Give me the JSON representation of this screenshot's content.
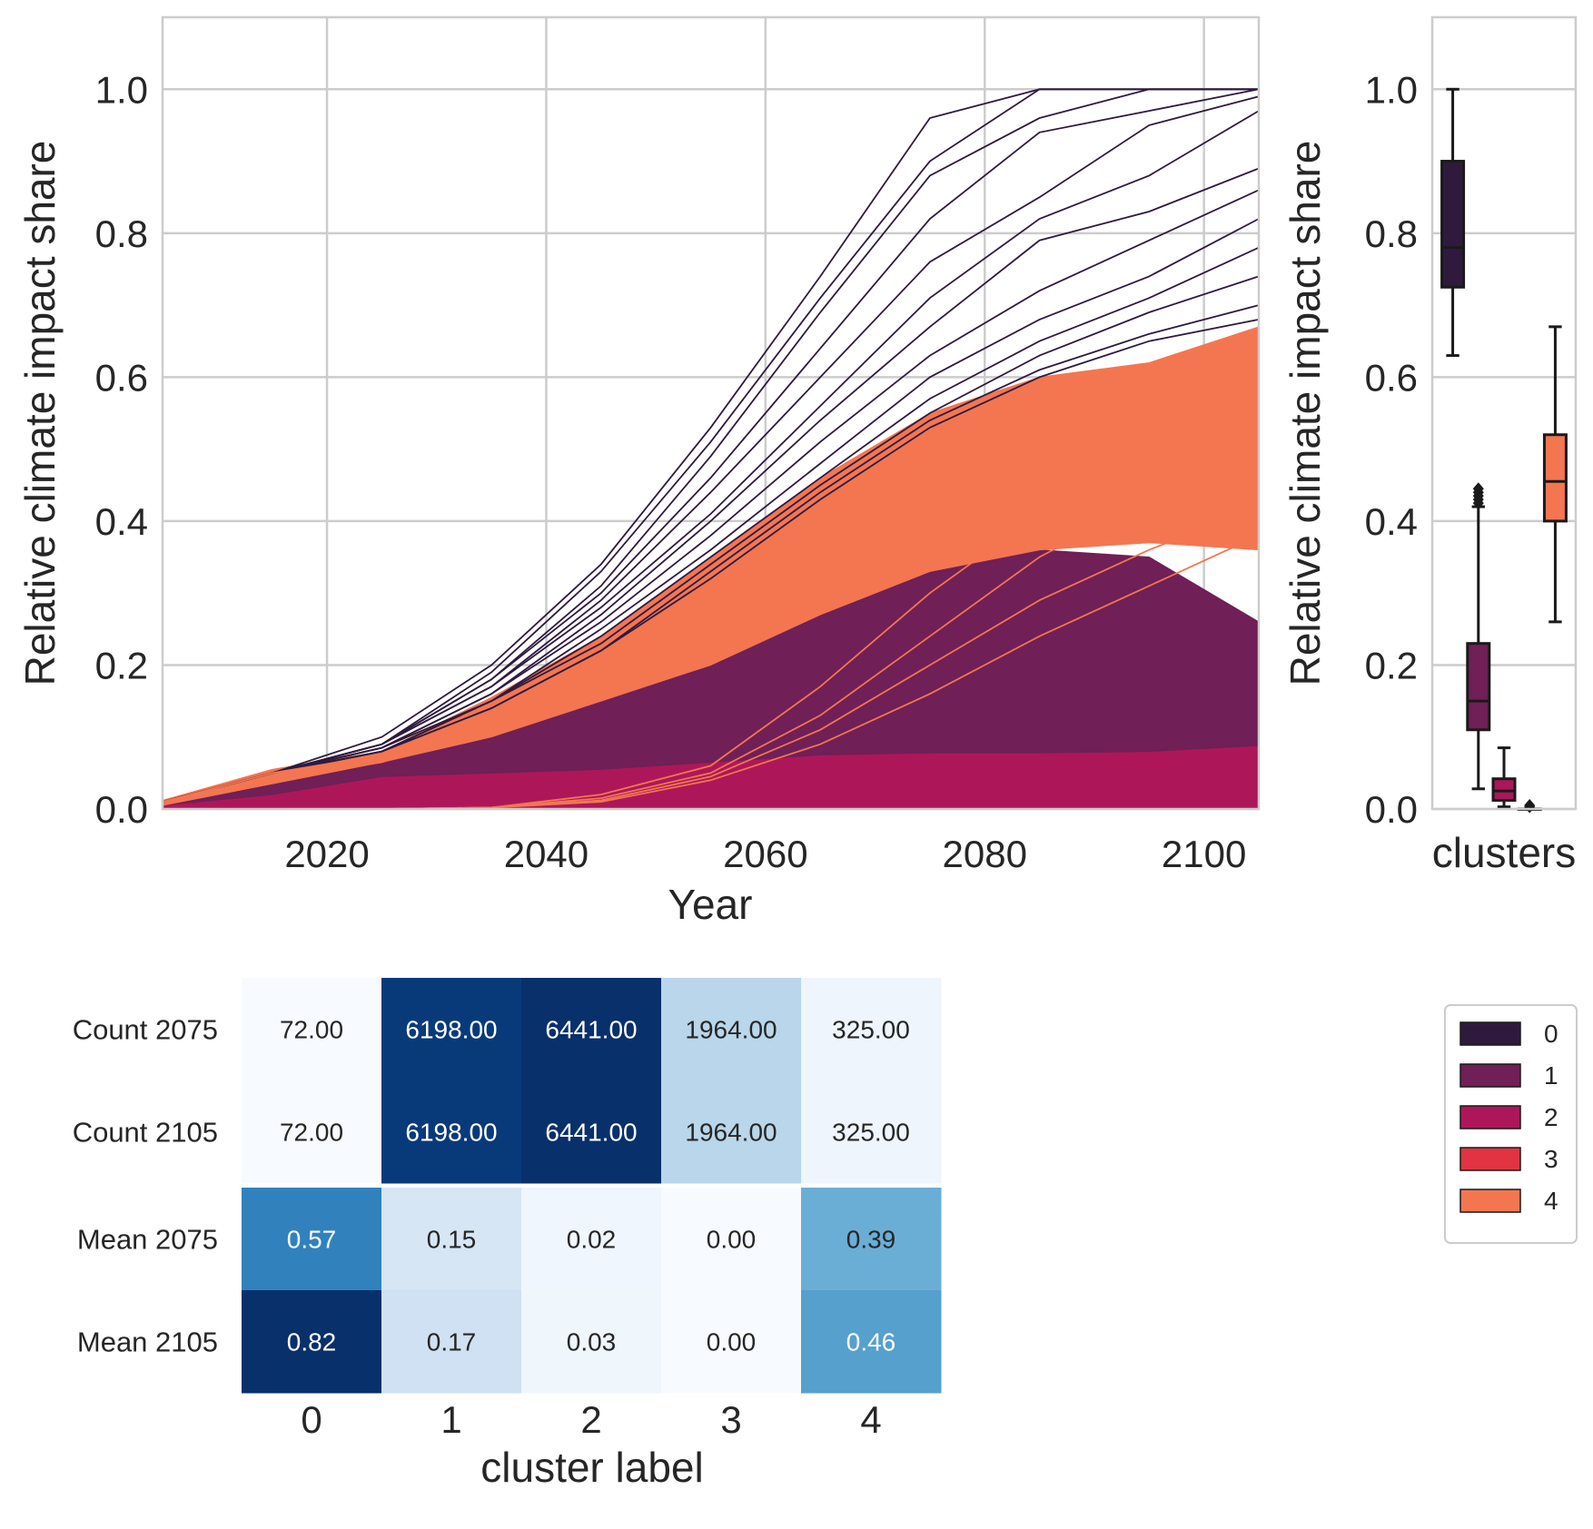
{
  "chart_data": [
    {
      "type": "line",
      "xlabel": "Year",
      "ylabel": "Relative climate impact share",
      "xlim": [
        2005,
        2105
      ],
      "ylim": [
        0,
        1.1
      ],
      "xticks": [
        2020,
        2040,
        2060,
        2080,
        2100
      ],
      "yticks": [
        0.0,
        0.2,
        0.4,
        0.6,
        0.8,
        1.0
      ],
      "x": [
        2005,
        2015,
        2025,
        2035,
        2045,
        2055,
        2065,
        2075,
        2085,
        2095,
        2105
      ],
      "grid": true,
      "bands": [
        {
          "name": "2",
          "color": "#ad1759",
          "lower": [
            0,
            0,
            0,
            0,
            0,
            0,
            0,
            0,
            0,
            0,
            0
          ],
          "upper": [
            0.005,
            0.02,
            0.045,
            0.05,
            0.055,
            0.065,
            0.075,
            0.078,
            0.078,
            0.08,
            0.088
          ]
        },
        {
          "name": "1",
          "color": "#701f57",
          "lower": [
            0.005,
            0.02,
            0.045,
            0.05,
            0.055,
            0.065,
            0.075,
            0.078,
            0.078,
            0.08,
            0.088
          ],
          "upper": [
            0.005,
            0.035,
            0.065,
            0.1,
            0.15,
            0.2,
            0.27,
            0.33,
            0.36,
            0.35,
            0.26
          ]
        },
        {
          "name": "4",
          "color": "#f37651",
          "lower": [
            0.005,
            0.035,
            0.065,
            0.1,
            0.15,
            0.2,
            0.27,
            0.33,
            0.36,
            0.37,
            0.36
          ],
          "upper": [
            0.012,
            0.055,
            0.08,
            0.155,
            0.24,
            0.35,
            0.46,
            0.55,
            0.6,
            0.62,
            0.67
          ]
        }
      ],
      "series": [
        {
          "color": "#2f1a3e",
          "values": [
            0.01,
            0.05,
            0.1,
            0.2,
            0.34,
            0.53,
            0.74,
            0.96,
            1.0,
            1.0,
            1.0
          ]
        },
        {
          "color": "#2f1a3e",
          "values": [
            0.01,
            0.05,
            0.09,
            0.19,
            0.33,
            0.51,
            0.71,
            0.9,
            1.0,
            1.0,
            1.0
          ]
        },
        {
          "color": "#2f1a3e",
          "values": [
            0.01,
            0.05,
            0.09,
            0.18,
            0.31,
            0.49,
            0.69,
            0.88,
            0.96,
            1.0,
            1.0
          ]
        },
        {
          "color": "#2f1a3e",
          "values": [
            0.01,
            0.05,
            0.09,
            0.18,
            0.3,
            0.46,
            0.64,
            0.82,
            0.94,
            0.97,
            1.0
          ]
        },
        {
          "color": "#2f1a3e",
          "values": [
            0.01,
            0.05,
            0.09,
            0.17,
            0.29,
            0.44,
            0.6,
            0.76,
            0.85,
            0.95,
            0.99
          ]
        },
        {
          "color": "#2f1a3e",
          "values": [
            0.01,
            0.05,
            0.09,
            0.17,
            0.28,
            0.41,
            0.56,
            0.71,
            0.82,
            0.88,
            0.97
          ]
        },
        {
          "color": "#2f1a3e",
          "values": [
            0.01,
            0.05,
            0.085,
            0.16,
            0.27,
            0.4,
            0.54,
            0.67,
            0.79,
            0.83,
            0.89
          ]
        },
        {
          "color": "#2f1a3e",
          "values": [
            0.01,
            0.05,
            0.085,
            0.16,
            0.26,
            0.38,
            0.51,
            0.63,
            0.72,
            0.79,
            0.86
          ]
        },
        {
          "color": "#2f1a3e",
          "values": [
            0.01,
            0.05,
            0.085,
            0.15,
            0.25,
            0.36,
            0.48,
            0.6,
            0.68,
            0.74,
            0.82
          ]
        },
        {
          "color": "#2f1a3e",
          "values": [
            0.01,
            0.05,
            0.08,
            0.15,
            0.24,
            0.35,
            0.46,
            0.57,
            0.65,
            0.71,
            0.78
          ]
        },
        {
          "color": "#2f1a3e",
          "values": [
            0.01,
            0.05,
            0.08,
            0.15,
            0.23,
            0.34,
            0.45,
            0.55,
            0.63,
            0.69,
            0.74
          ]
        },
        {
          "color": "#2f1a3e",
          "values": [
            0.01,
            0.05,
            0.08,
            0.14,
            0.22,
            0.33,
            0.44,
            0.54,
            0.61,
            0.66,
            0.7
          ]
        },
        {
          "color": "#2f1a3e",
          "values": [
            0.01,
            0.05,
            0.08,
            0.14,
            0.22,
            0.32,
            0.43,
            0.53,
            0.6,
            0.65,
            0.68
          ]
        },
        {
          "color": "#f37651",
          "values": [
            0.01,
            0.05,
            0.075,
            0.13,
            0.2,
            0.29,
            0.39,
            0.48,
            0.54,
            0.58,
            0.6
          ]
        },
        {
          "color": "#f37651",
          "values": [
            0.01,
            0.045,
            0.07,
            0.12,
            0.18,
            0.26,
            0.35,
            0.43,
            0.48,
            0.51,
            0.52
          ]
        },
        {
          "color": "#f37651",
          "values": [
            0.01,
            0.04,
            0.065,
            0.11,
            0.16,
            0.23,
            0.3,
            0.37,
            0.41,
            0.43,
            0.44
          ]
        },
        {
          "color": "#f37651",
          "values": [
            0.0,
            0.0,
            0.0,
            0.002,
            0.02,
            0.06,
            0.17,
            0.3,
            0.41,
            0.49,
            0.6
          ]
        },
        {
          "color": "#f37651",
          "values": [
            0.0,
            0.0,
            0.0,
            0.002,
            0.015,
            0.05,
            0.13,
            0.24,
            0.35,
            0.43,
            0.5
          ]
        },
        {
          "color": "#f37651",
          "values": [
            0.0,
            0.0,
            0.0,
            0.002,
            0.012,
            0.045,
            0.11,
            0.2,
            0.29,
            0.36,
            0.42
          ]
        },
        {
          "color": "#f37651",
          "values": [
            0.0,
            0.0,
            0.0,
            0.002,
            0.01,
            0.04,
            0.09,
            0.16,
            0.24,
            0.31,
            0.38
          ]
        }
      ]
    },
    {
      "type": "box",
      "xlabel": "clusters",
      "ylabel": "Relative climate impact share",
      "ylim": [
        0,
        1.1
      ],
      "yticks": [
        0.0,
        0.2,
        0.4,
        0.6,
        0.8,
        1.0
      ],
      "boxes": [
        {
          "name": "0",
          "color": "#2f1a3e",
          "whislo": 0.63,
          "q1": 0.725,
          "med": 0.78,
          "q3": 0.9,
          "whishi": 1.0,
          "fliers": []
        },
        {
          "name": "1",
          "color": "#701f57",
          "whislo": 0.028,
          "q1": 0.11,
          "med": 0.15,
          "q3": 0.23,
          "whishi": 0.42,
          "fliers": [
            0.425,
            0.43,
            0.435,
            0.44,
            0.445
          ]
        },
        {
          "name": "2",
          "color": "#ad1759",
          "whislo": 0.003,
          "q1": 0.012,
          "med": 0.025,
          "q3": 0.042,
          "whishi": 0.085,
          "fliers": []
        },
        {
          "name": "3",
          "color": "#e13342",
          "whislo": 0.0,
          "q1": 0.0,
          "med": 0.0,
          "q3": 0.0,
          "whishi": 0.0,
          "fliers": [
            0.003,
            0.005
          ]
        },
        {
          "name": "4",
          "color": "#f37651",
          "whislo": 0.26,
          "q1": 0.4,
          "med": 0.455,
          "q3": 0.52,
          "whishi": 0.67,
          "fliers": []
        }
      ]
    },
    {
      "type": "heatmap",
      "xlabel": "cluster label",
      "columns": [
        "0",
        "1",
        "2",
        "3",
        "4"
      ],
      "rows": [
        {
          "label": "Count 2075",
          "values": [
            "72.00",
            "6198.00",
            "6441.00",
            "1964.00",
            "325.00"
          ],
          "colors": [
            "#f7fbff",
            "#083a7a",
            "#08306b",
            "#b9d6eb",
            "#eef5fc"
          ],
          "text_colors": [
            "#262626",
            "#ffffff",
            "#ffffff",
            "#262626",
            "#262626"
          ]
        },
        {
          "label": "Count 2105",
          "values": [
            "72.00",
            "6198.00",
            "6441.00",
            "1964.00",
            "325.00"
          ],
          "colors": [
            "#f7fbff",
            "#083a7a",
            "#08306b",
            "#b9d6eb",
            "#eef5fc"
          ],
          "text_colors": [
            "#262626",
            "#ffffff",
            "#ffffff",
            "#262626",
            "#262626"
          ]
        },
        {
          "label": "Mean 2075",
          "values": [
            "0.57",
            "0.15",
            "0.02",
            "0.00",
            "0.39"
          ],
          "colors": [
            "#3181bd",
            "#d6e6f4",
            "#f0f6fd",
            "#f7fbff",
            "#6aaed6"
          ],
          "text_colors": [
            "#ffffff",
            "#262626",
            "#262626",
            "#262626",
            "#262626"
          ]
        },
        {
          "label": "Mean 2105",
          "values": [
            "0.82",
            "0.17",
            "0.03",
            "0.00",
            "0.46"
          ],
          "colors": [
            "#08306b",
            "#cfe1f2",
            "#eff6fc",
            "#f7fbff",
            "#56a0ce"
          ],
          "text_colors": [
            "#ffffff",
            "#262626",
            "#262626",
            "#262626",
            "#ffffff"
          ]
        }
      ]
    }
  ],
  "legend": {
    "placement": "right",
    "items": [
      {
        "label": "0",
        "color": "#2f1a3e"
      },
      {
        "label": "1",
        "color": "#701f57"
      },
      {
        "label": "2",
        "color": "#ad1759"
      },
      {
        "label": "3",
        "color": "#e13342"
      },
      {
        "label": "4",
        "color": "#f37651"
      }
    ]
  }
}
